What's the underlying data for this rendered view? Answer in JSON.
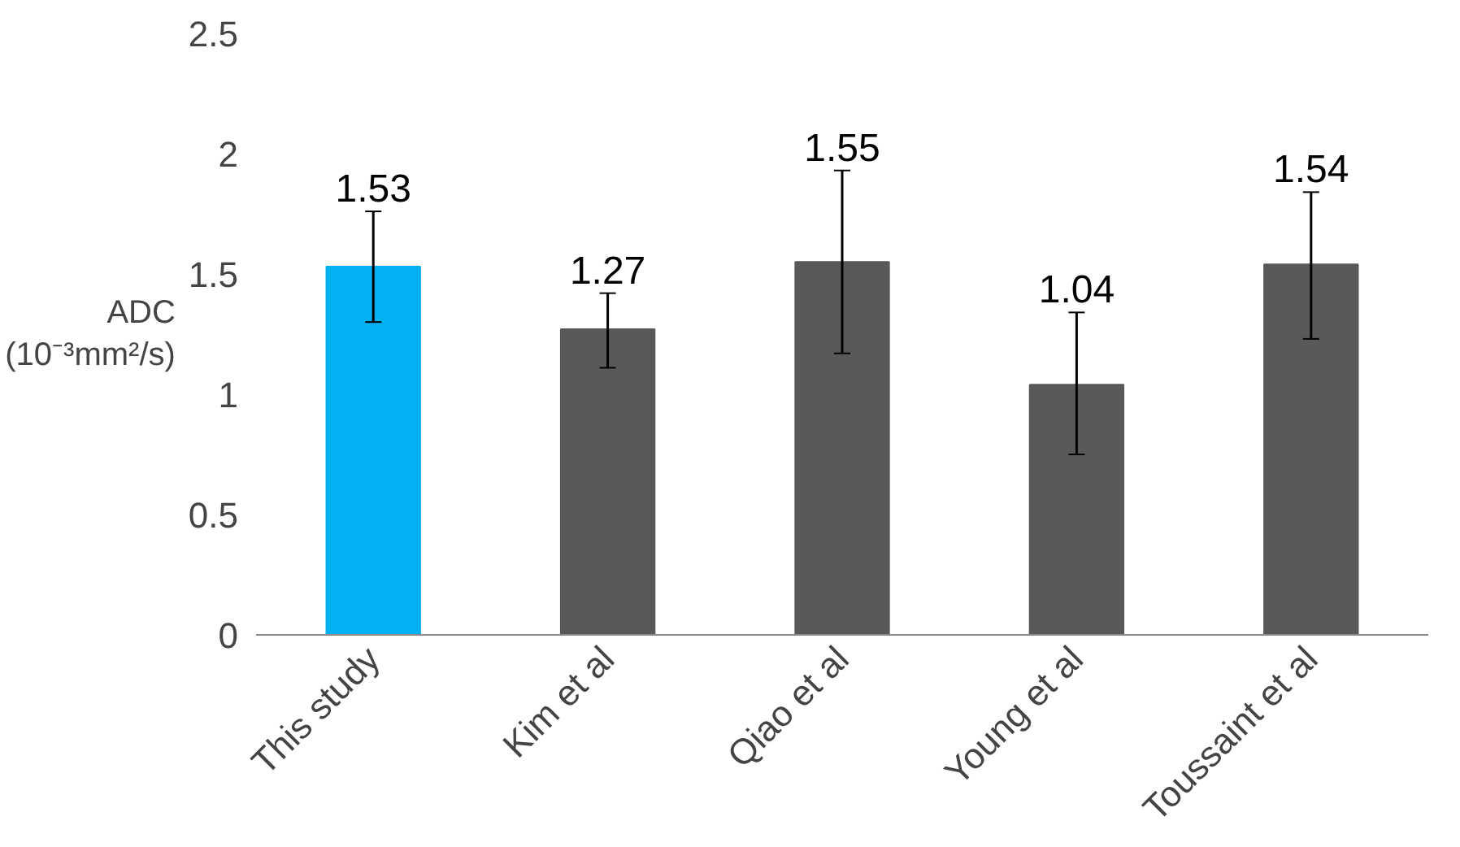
{
  "chart_data": {
    "type": "bar",
    "categories": [
      "This study",
      "Kim et al",
      "Qiao et al",
      "Young et al",
      "Toussaint et al"
    ],
    "values": [
      1.53,
      1.27,
      1.55,
      1.04,
      1.54
    ],
    "colors": [
      "#00b0f0",
      "#595959",
      "#595959",
      "#595959",
      "#595959"
    ],
    "errors": [
      [
        1.3,
        1.76
      ],
      [
        1.11,
        1.42
      ],
      [
        1.17,
        1.93
      ],
      [
        0.75,
        1.34
      ],
      [
        1.23,
        1.84
      ]
    ],
    "ylabel": "ADC\n(10⁻³mm²/s)",
    "ylim": [
      0,
      2.5
    ],
    "yticks": [
      0,
      0.5,
      1,
      1.5,
      2,
      2.5
    ],
    "data_labels": true,
    "grid": false
  }
}
